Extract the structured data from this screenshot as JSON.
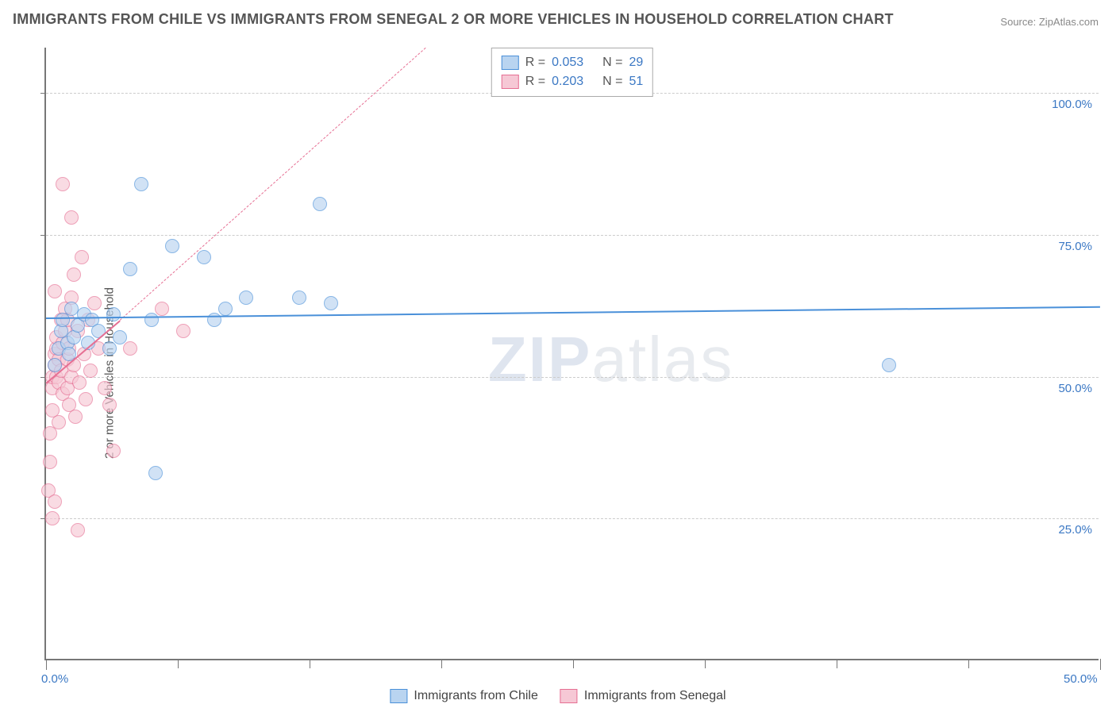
{
  "title": "IMMIGRANTS FROM CHILE VS IMMIGRANTS FROM SENEGAL 2 OR MORE VEHICLES IN HOUSEHOLD CORRELATION CHART",
  "source_label": "Source:",
  "source_value": "ZipAtlas.com",
  "ylabel": "2 or more Vehicles in Household",
  "watermark_bold": "ZIP",
  "watermark_rest": "atlas",
  "colors": {
    "blue_fill": "#b9d4f0",
    "blue_stroke": "#4a90d9",
    "pink_fill": "#f6c8d5",
    "pink_stroke": "#e66f93",
    "blue_text": "#3b78c4",
    "axis": "#777777",
    "grid": "#cccccc",
    "label_gray": "#555555"
  },
  "axes": {
    "x_min": 0,
    "x_max": 50,
    "y_min": 0,
    "y_max": 108,
    "y_gridlines": [
      25,
      50,
      75,
      100
    ],
    "y_tick_labels": [
      "25.0%",
      "50.0%",
      "75.0%",
      "100.0%"
    ],
    "x_ticks": [
      0,
      50
    ],
    "x_tick_labels": [
      "0.0%",
      "50.0%"
    ],
    "x_minor_ticks": [
      6.25,
      12.5,
      18.75,
      25,
      31.25,
      37.5,
      43.75
    ]
  },
  "legend_top": [
    {
      "swatch": "blue",
      "r_label": "R =",
      "r_value": "0.053",
      "n_label": "N =",
      "n_value": "29"
    },
    {
      "swatch": "pink",
      "r_label": "R =",
      "r_value": "0.203",
      "n_label": "N =",
      "n_value": "51"
    }
  ],
  "legend_bottom": [
    {
      "swatch": "blue",
      "label": "Immigrants from Chile"
    },
    {
      "swatch": "pink",
      "label": "Immigrants from Senegal"
    }
  ],
  "series": {
    "chile": {
      "color_fill": "#b9d4f0",
      "color_stroke": "#4a90d9",
      "marker_radius": 9,
      "marker_opacity": 0.65,
      "points": [
        {
          "x": 0.4,
          "y": 52
        },
        {
          "x": 0.6,
          "y": 55
        },
        {
          "x": 0.7,
          "y": 58
        },
        {
          "x": 0.8,
          "y": 60
        },
        {
          "x": 1.0,
          "y": 56
        },
        {
          "x": 1.1,
          "y": 54
        },
        {
          "x": 1.2,
          "y": 62
        },
        {
          "x": 1.3,
          "y": 57
        },
        {
          "x": 1.5,
          "y": 59
        },
        {
          "x": 1.8,
          "y": 61
        },
        {
          "x": 2.0,
          "y": 56
        },
        {
          "x": 2.2,
          "y": 60
        },
        {
          "x": 2.5,
          "y": 58
        },
        {
          "x": 3.0,
          "y": 55
        },
        {
          "x": 3.2,
          "y": 61
        },
        {
          "x": 3.5,
          "y": 57
        },
        {
          "x": 4.0,
          "y": 69
        },
        {
          "x": 4.5,
          "y": 84
        },
        {
          "x": 5.0,
          "y": 60
        },
        {
          "x": 5.2,
          "y": 33
        },
        {
          "x": 6.0,
          "y": 73
        },
        {
          "x": 7.5,
          "y": 71
        },
        {
          "x": 8.0,
          "y": 60
        },
        {
          "x": 8.5,
          "y": 62
        },
        {
          "x": 9.5,
          "y": 64
        },
        {
          "x": 12.0,
          "y": 64
        },
        {
          "x": 13.0,
          "y": 80.5
        },
        {
          "x": 13.5,
          "y": 63
        },
        {
          "x": 40.0,
          "y": 52
        }
      ],
      "trend": {
        "x1": 0,
        "y1": 60.5,
        "x2": 50,
        "y2": 62.5,
        "dash": false,
        "width": 2
      }
    },
    "senegal": {
      "color_fill": "#f6c8d5",
      "color_stroke": "#e66f93",
      "marker_radius": 9,
      "marker_opacity": 0.65,
      "points": [
        {
          "x": 0.1,
          "y": 30
        },
        {
          "x": 0.2,
          "y": 35
        },
        {
          "x": 0.2,
          "y": 40
        },
        {
          "x": 0.3,
          "y": 44
        },
        {
          "x": 0.3,
          "y": 48
        },
        {
          "x": 0.3,
          "y": 50
        },
        {
          "x": 0.4,
          "y": 52
        },
        {
          "x": 0.4,
          "y": 54
        },
        {
          "x": 0.5,
          "y": 50
        },
        {
          "x": 0.5,
          "y": 55
        },
        {
          "x": 0.5,
          "y": 57
        },
        {
          "x": 0.6,
          "y": 49
        },
        {
          "x": 0.6,
          "y": 53
        },
        {
          "x": 0.7,
          "y": 60
        },
        {
          "x": 0.7,
          "y": 51
        },
        {
          "x": 0.8,
          "y": 47
        },
        {
          "x": 0.8,
          "y": 56
        },
        {
          "x": 0.9,
          "y": 58
        },
        {
          "x": 0.9,
          "y": 62
        },
        {
          "x": 1.0,
          "y": 48
        },
        {
          "x": 1.0,
          "y": 53
        },
        {
          "x": 1.0,
          "y": 60
        },
        {
          "x": 1.1,
          "y": 45
        },
        {
          "x": 1.1,
          "y": 55
        },
        {
          "x": 1.2,
          "y": 50
        },
        {
          "x": 1.2,
          "y": 64
        },
        {
          "x": 1.3,
          "y": 52
        },
        {
          "x": 1.4,
          "y": 43
        },
        {
          "x": 1.5,
          "y": 58
        },
        {
          "x": 1.6,
          "y": 49
        },
        {
          "x": 1.7,
          "y": 71
        },
        {
          "x": 1.8,
          "y": 54
        },
        {
          "x": 1.9,
          "y": 46
        },
        {
          "x": 2.0,
          "y": 60
        },
        {
          "x": 2.1,
          "y": 51
        },
        {
          "x": 2.3,
          "y": 63
        },
        {
          "x": 2.5,
          "y": 55
        },
        {
          "x": 2.8,
          "y": 48
        },
        {
          "x": 3.0,
          "y": 45
        },
        {
          "x": 3.2,
          "y": 37
        },
        {
          "x": 0.8,
          "y": 84
        },
        {
          "x": 1.2,
          "y": 78
        },
        {
          "x": 0.4,
          "y": 28
        },
        {
          "x": 0.3,
          "y": 25
        },
        {
          "x": 1.5,
          "y": 23
        },
        {
          "x": 0.6,
          "y": 42
        },
        {
          "x": 1.3,
          "y": 68
        },
        {
          "x": 4.0,
          "y": 55
        },
        {
          "x": 5.5,
          "y": 62
        },
        {
          "x": 6.5,
          "y": 58
        },
        {
          "x": 0.4,
          "y": 65
        }
      ],
      "trend_solid": {
        "x1": 0,
        "y1": 49,
        "x2": 3.5,
        "y2": 60,
        "dash": false,
        "width": 2
      },
      "trend_dash": {
        "x1": 3.5,
        "y1": 60,
        "x2": 18,
        "y2": 108,
        "dash": true,
        "width": 1
      }
    }
  }
}
